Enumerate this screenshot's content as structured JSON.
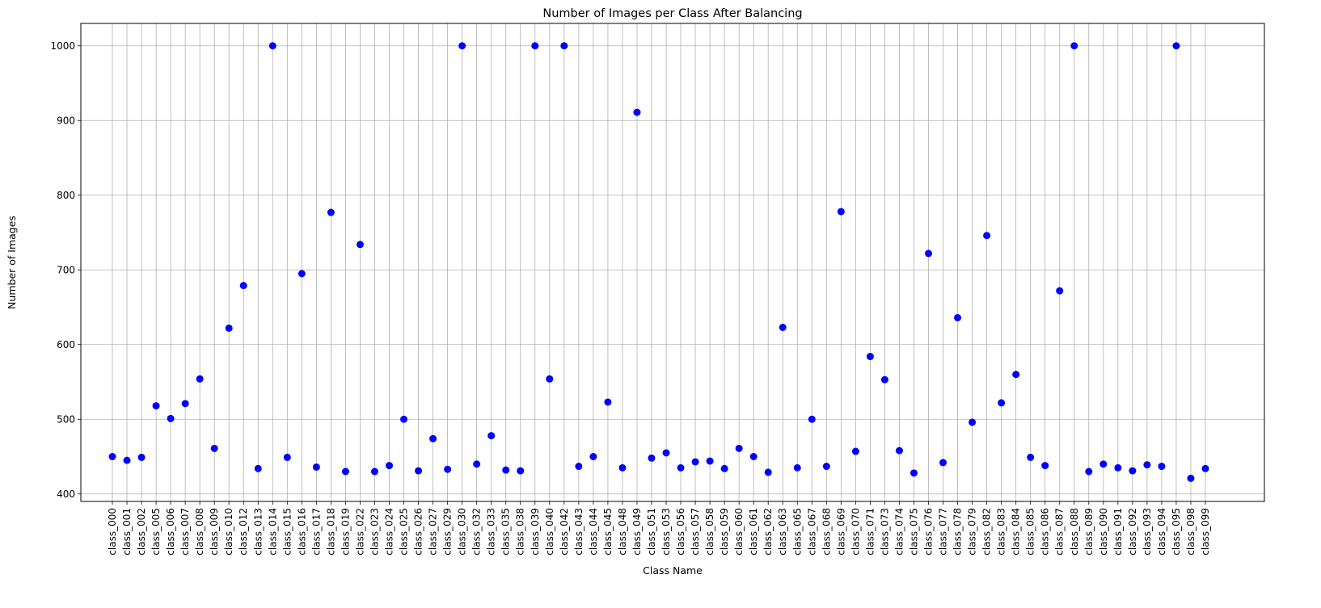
{
  "chart_data": {
    "type": "scatter",
    "title": "Number of Images per Class After Balancing",
    "xlabel": "Class Name",
    "ylabel": "Number of Images",
    "ylim": [
      390,
      1030
    ],
    "yticks": [
      400,
      500,
      600,
      700,
      800,
      900,
      1000
    ],
    "grid": true,
    "marker_color": "#0000ff",
    "grid_color": "#b0b0b0",
    "categories": [
      "class_000",
      "class_001",
      "class_002",
      "class_005",
      "class_006",
      "class_007",
      "class_008",
      "class_009",
      "class_010",
      "class_012",
      "class_013",
      "class_014",
      "class_015",
      "class_016",
      "class_017",
      "class_018",
      "class_019",
      "class_022",
      "class_023",
      "class_024",
      "class_025",
      "class_026",
      "class_027",
      "class_029",
      "class_030",
      "class_032",
      "class_033",
      "class_035",
      "class_038",
      "class_039",
      "class_040",
      "class_042",
      "class_043",
      "class_044",
      "class_045",
      "class_048",
      "class_049",
      "class_051",
      "class_053",
      "class_056",
      "class_057",
      "class_058",
      "class_059",
      "class_060",
      "class_061",
      "class_062",
      "class_063",
      "class_065",
      "class_067",
      "class_068",
      "class_069",
      "class_070",
      "class_071",
      "class_073",
      "class_074",
      "class_075",
      "class_076",
      "class_077",
      "class_078",
      "class_079",
      "class_082",
      "class_083",
      "class_084",
      "class_085",
      "class_086",
      "class_087",
      "class_088",
      "class_089",
      "class_090",
      "class_091",
      "class_092",
      "class_093",
      "class_094",
      "class_095",
      "class_098",
      "class_099"
    ],
    "values": [
      450,
      445,
      449,
      518,
      501,
      521,
      554,
      461,
      622,
      679,
      434,
      1000,
      449,
      695,
      436,
      777,
      430,
      734,
      430,
      438,
      500,
      431,
      474,
      433,
      1000,
      440,
      478,
      432,
      431,
      1000,
      554,
      1000,
      437,
      450,
      523,
      435,
      911,
      448,
      455,
      435,
      443,
      444,
      434,
      461,
      450,
      429,
      623,
      435,
      500,
      437,
      778,
      457,
      584,
      553,
      458,
      428,
      722,
      442,
      636,
      496,
      746,
      522,
      560,
      449,
      438,
      672,
      1000,
      430,
      440,
      435,
      431,
      439,
      437,
      1000,
      421,
      434
    ]
  }
}
